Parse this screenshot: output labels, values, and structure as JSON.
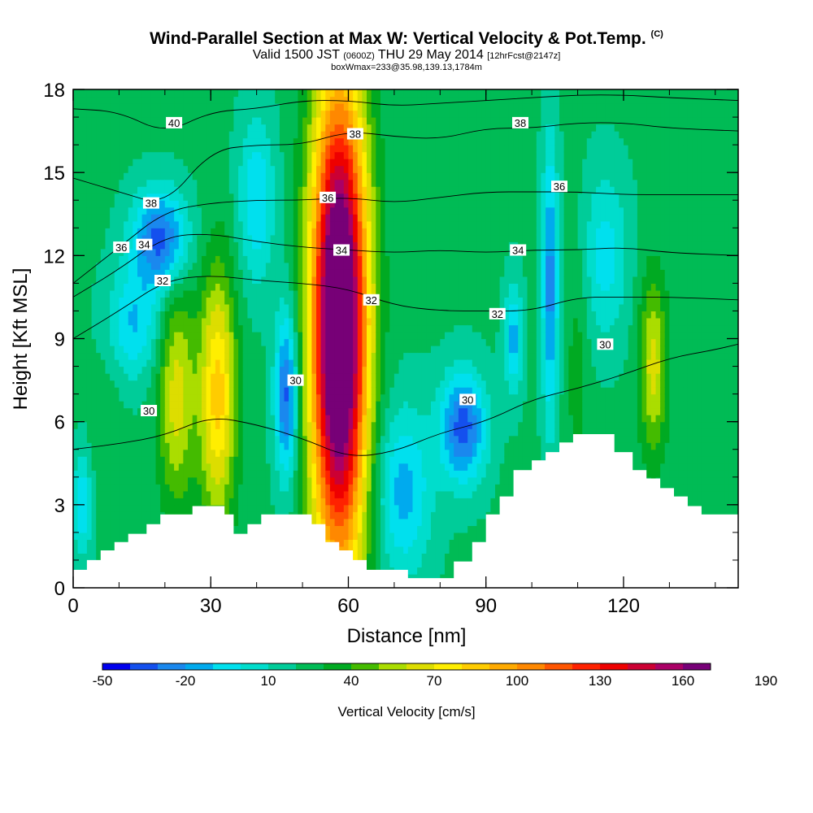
{
  "header": {
    "title": "Wind-Parallel Section at Max W: Vertical Velocity & Pot.Temp.",
    "title_tag": "(C)",
    "subtitle_main": "Valid 1500 JST",
    "subtitle_utc": "(0600Z)",
    "subtitle_date": "THU 29 May 2014",
    "subtitle_fcst": "[12hrFcst@2147z]",
    "boxinfo": "boxWmax=233@35.98,139.13,1784m"
  },
  "chart_data": {
    "type": "heatmap",
    "xlabel": "Distance [nm]",
    "ylabel": "Height [Kft MSL]",
    "xlim": [
      0,
      145
    ],
    "ylim": [
      0,
      18
    ],
    "x_ticks": [
      0,
      30,
      60,
      90,
      120
    ],
    "y_ticks": [
      0,
      3,
      6,
      9,
      12,
      15,
      18
    ],
    "x_minor_step": 10,
    "y_minor_step": 1,
    "background_color": "#00eeee",
    "colorbar": {
      "label": "Vertical Velocity [cm/s]",
      "tick_labels": [
        -50,
        -20,
        10,
        40,
        70,
        100,
        130,
        160,
        190
      ],
      "colors": [
        "#0000ee",
        "#1450ee",
        "#1a88ee",
        "#00aaee",
        "#00e0ee",
        "#00ddcc",
        "#00cc99",
        "#00bb55",
        "#00aa22",
        "#44bb00",
        "#aadd00",
        "#dddd00",
        "#ffee00",
        "#ffcc00",
        "#ffaa00",
        "#ff8800",
        "#ff5500",
        "#ff2200",
        "#ee0000",
        "#cc0033",
        "#aa0066",
        "#770077"
      ]
    },
    "w_features": [
      {
        "x": 58,
        "y": 9.5,
        "rx": 6,
        "ry": 8.5,
        "peak": 200
      },
      {
        "x": 31.5,
        "y": 7,
        "rx": 4,
        "ry": 4.5,
        "peak": 75
      },
      {
        "x": 22.5,
        "y": 7,
        "rx": 4,
        "ry": 4,
        "peak": 55
      },
      {
        "x": 126.5,
        "y": 8,
        "rx": 3,
        "ry": 3.2,
        "peak": 55
      },
      {
        "x": 110,
        "y": 8,
        "rx": 2.5,
        "ry": 5,
        "peak": 25
      },
      {
        "x": 7,
        "y": 6.5,
        "rx": 4,
        "ry": 3,
        "peak": 18
      },
      {
        "x": 19,
        "y": 12.6,
        "rx": 6,
        "ry": 1.8,
        "peak": -45
      },
      {
        "x": 46.5,
        "y": 7,
        "rx": 2.5,
        "ry": 3,
        "peak": -45
      },
      {
        "x": 85,
        "y": 5.8,
        "rx": 5,
        "ry": 2,
        "peak": -45
      },
      {
        "x": 104,
        "y": 11,
        "rx": 1.8,
        "ry": 5,
        "peak": -35
      },
      {
        "x": 96,
        "y": 9,
        "rx": 2,
        "ry": 2,
        "peak": -25
      },
      {
        "x": 72,
        "y": 3.5,
        "rx": 6,
        "ry": 3,
        "peak": -25
      },
      {
        "x": 13,
        "y": 9.5,
        "rx": 6,
        "ry": 2,
        "peak": -20
      },
      {
        "x": 40,
        "y": 14,
        "rx": 4,
        "ry": 3,
        "peak": -20
      },
      {
        "x": 116,
        "y": 12,
        "rx": 5,
        "ry": 3,
        "peak": -15
      },
      {
        "x": 2,
        "y": 3,
        "rx": 2,
        "ry": 2,
        "peak": -18
      }
    ],
    "terrain": [
      [
        0,
        0.65
      ],
      [
        3,
        0.65
      ],
      [
        3,
        1
      ],
      [
        6,
        1
      ],
      [
        6,
        1.35
      ],
      [
        9,
        1.35
      ],
      [
        9,
        1.65
      ],
      [
        12,
        1.65
      ],
      [
        12,
        1.95
      ],
      [
        16,
        1.95
      ],
      [
        16,
        2.3
      ],
      [
        19,
        2.3
      ],
      [
        19,
        2.65
      ],
      [
        26,
        2.65
      ],
      [
        26,
        2.95
      ],
      [
        33,
        2.95
      ],
      [
        33,
        2.65
      ],
      [
        35,
        2.65
      ],
      [
        35,
        1.95
      ],
      [
        38,
        1.95
      ],
      [
        38,
        2.3
      ],
      [
        41,
        2.3
      ],
      [
        41,
        2.65
      ],
      [
        52,
        2.65
      ],
      [
        52,
        2.3
      ],
      [
        55,
        2.3
      ],
      [
        55,
        1.65
      ],
      [
        58,
        1.65
      ],
      [
        58,
        1.35
      ],
      [
        61,
        1.35
      ],
      [
        61,
        1
      ],
      [
        64,
        1
      ],
      [
        64,
        0.65
      ],
      [
        73,
        0.65
      ],
      [
        73,
        0.35
      ],
      [
        83,
        0.35
      ],
      [
        83,
        0.95
      ],
      [
        87,
        0.95
      ],
      [
        87,
        1.65
      ],
      [
        90,
        1.65
      ],
      [
        90,
        2.65
      ],
      [
        93,
        2.65
      ],
      [
        93,
        3.3
      ],
      [
        96,
        3.3
      ],
      [
        96,
        4.25
      ],
      [
        100,
        4.25
      ],
      [
        100,
        4.6
      ],
      [
        103,
        4.6
      ],
      [
        103,
        4.9
      ],
      [
        106,
        4.9
      ],
      [
        106,
        5.25
      ],
      [
        109,
        5.25
      ],
      [
        109,
        5.55
      ],
      [
        118,
        5.55
      ],
      [
        118,
        4.9
      ],
      [
        122,
        4.9
      ],
      [
        122,
        4.25
      ],
      [
        125,
        4.25
      ],
      [
        125,
        3.95
      ],
      [
        128,
        3.95
      ],
      [
        128,
        3.6
      ],
      [
        131,
        3.6
      ],
      [
        131,
        3.3
      ],
      [
        134,
        3.3
      ],
      [
        134,
        2.95
      ],
      [
        137,
        2.95
      ],
      [
        137,
        2.65
      ],
      [
        145,
        2.65
      ]
    ],
    "theta_contours": [
      {
        "label": "30",
        "pts": [
          [
            0,
            5
          ],
          [
            10,
            5.2
          ],
          [
            20,
            5.5
          ],
          [
            30,
            6.2
          ],
          [
            40,
            5.9
          ],
          [
            50,
            5.4
          ],
          [
            60,
            4.7
          ],
          [
            70,
            4.9
          ],
          [
            80,
            5.6
          ],
          [
            90,
            6
          ],
          [
            100,
            6.8
          ],
          [
            110,
            7.2
          ],
          [
            120,
            7.7
          ],
          [
            130,
            8.3
          ],
          [
            140,
            8.6
          ],
          [
            145,
            8.8
          ]
        ]
      },
      {
        "label": "32",
        "pts": [
          [
            0,
            9
          ],
          [
            10,
            10
          ],
          [
            20,
            11.1
          ],
          [
            30,
            11.3
          ],
          [
            40,
            11.1
          ],
          [
            50,
            11
          ],
          [
            60,
            10.8
          ],
          [
            70,
            10.2
          ],
          [
            80,
            10
          ],
          [
            90,
            10
          ],
          [
            100,
            10
          ],
          [
            110,
            10.5
          ],
          [
            120,
            10.5
          ],
          [
            130,
            10.5
          ],
          [
            145,
            10.4
          ]
        ]
      },
      {
        "label": "34",
        "pts": [
          [
            0,
            10.5
          ],
          [
            10,
            11.5
          ],
          [
            20,
            12.7
          ],
          [
            30,
            12.8
          ],
          [
            40,
            12.5
          ],
          [
            50,
            12.3
          ],
          [
            60,
            12.2
          ],
          [
            70,
            12.1
          ],
          [
            80,
            12.2
          ],
          [
            90,
            12.1
          ],
          [
            100,
            12.2
          ],
          [
            110,
            12.2
          ],
          [
            120,
            12.3
          ],
          [
            130,
            12.1
          ],
          [
            145,
            12
          ]
        ]
      },
      {
        "label": "36",
        "pts": [
          [
            0,
            11
          ],
          [
            10,
            12.3
          ],
          [
            20,
            13.6
          ],
          [
            30,
            13.9
          ],
          [
            40,
            14
          ],
          [
            50,
            14
          ],
          [
            60,
            14.1
          ],
          [
            70,
            13.9
          ],
          [
            80,
            14.1
          ],
          [
            90,
            14.3
          ],
          [
            100,
            14.3
          ],
          [
            110,
            14.3
          ],
          [
            120,
            14.2
          ],
          [
            130,
            14.2
          ],
          [
            145,
            14.2
          ]
        ]
      },
      {
        "label": "38",
        "pts": [
          [
            0,
            14.8
          ],
          [
            10,
            14.3
          ],
          [
            20,
            13.8
          ],
          [
            30,
            15.8
          ],
          [
            40,
            16
          ],
          [
            50,
            16
          ],
          [
            60,
            16.5
          ],
          [
            70,
            16.3
          ],
          [
            80,
            16.2
          ],
          [
            90,
            16.6
          ],
          [
            100,
            16.6
          ],
          [
            110,
            16.8
          ],
          [
            120,
            16.8
          ],
          [
            130,
            16.6
          ],
          [
            145,
            16.5
          ]
        ]
      },
      {
        "label": "40",
        "pts": [
          [
            0,
            17.3
          ],
          [
            10,
            17.2
          ],
          [
            20,
            16.4
          ],
          [
            30,
            17.2
          ],
          [
            40,
            17.3
          ],
          [
            50,
            17.6
          ],
          [
            60,
            17.6
          ],
          [
            70,
            17.4
          ],
          [
            80,
            17.5
          ],
          [
            90,
            17.6
          ],
          [
            100,
            17.7
          ],
          [
            110,
            17.8
          ],
          [
            120,
            17.8
          ],
          [
            130,
            17.7
          ],
          [
            145,
            17.6
          ]
        ]
      }
    ],
    "theta_labels": [
      {
        "text": "40",
        "x": 22,
        "y": 16.8
      },
      {
        "text": "38",
        "x": 17,
        "y": 13.9
      },
      {
        "text": "36",
        "x": 10.5,
        "y": 12.3
      },
      {
        "text": "34",
        "x": 15.5,
        "y": 12.4
      },
      {
        "text": "32",
        "x": 19.5,
        "y": 11.1
      },
      {
        "text": "30",
        "x": 16.5,
        "y": 6.4
      },
      {
        "text": "38",
        "x": 61.5,
        "y": 16.4
      },
      {
        "text": "36",
        "x": 55.5,
        "y": 14.1
      },
      {
        "text": "34",
        "x": 58.5,
        "y": 12.2
      },
      {
        "text": "32",
        "x": 65,
        "y": 10.4
      },
      {
        "text": "30",
        "x": 48.5,
        "y": 7.5
      },
      {
        "text": "38",
        "x": 97.5,
        "y": 16.8
      },
      {
        "text": "36",
        "x": 106,
        "y": 14.5
      },
      {
        "text": "34",
        "x": 97,
        "y": 12.2
      },
      {
        "text": "32",
        "x": 92.5,
        "y": 9.9
      },
      {
        "text": "30",
        "x": 86,
        "y": 6.8
      },
      {
        "text": "30",
        "x": 116,
        "y": 8.8
      }
    ]
  }
}
